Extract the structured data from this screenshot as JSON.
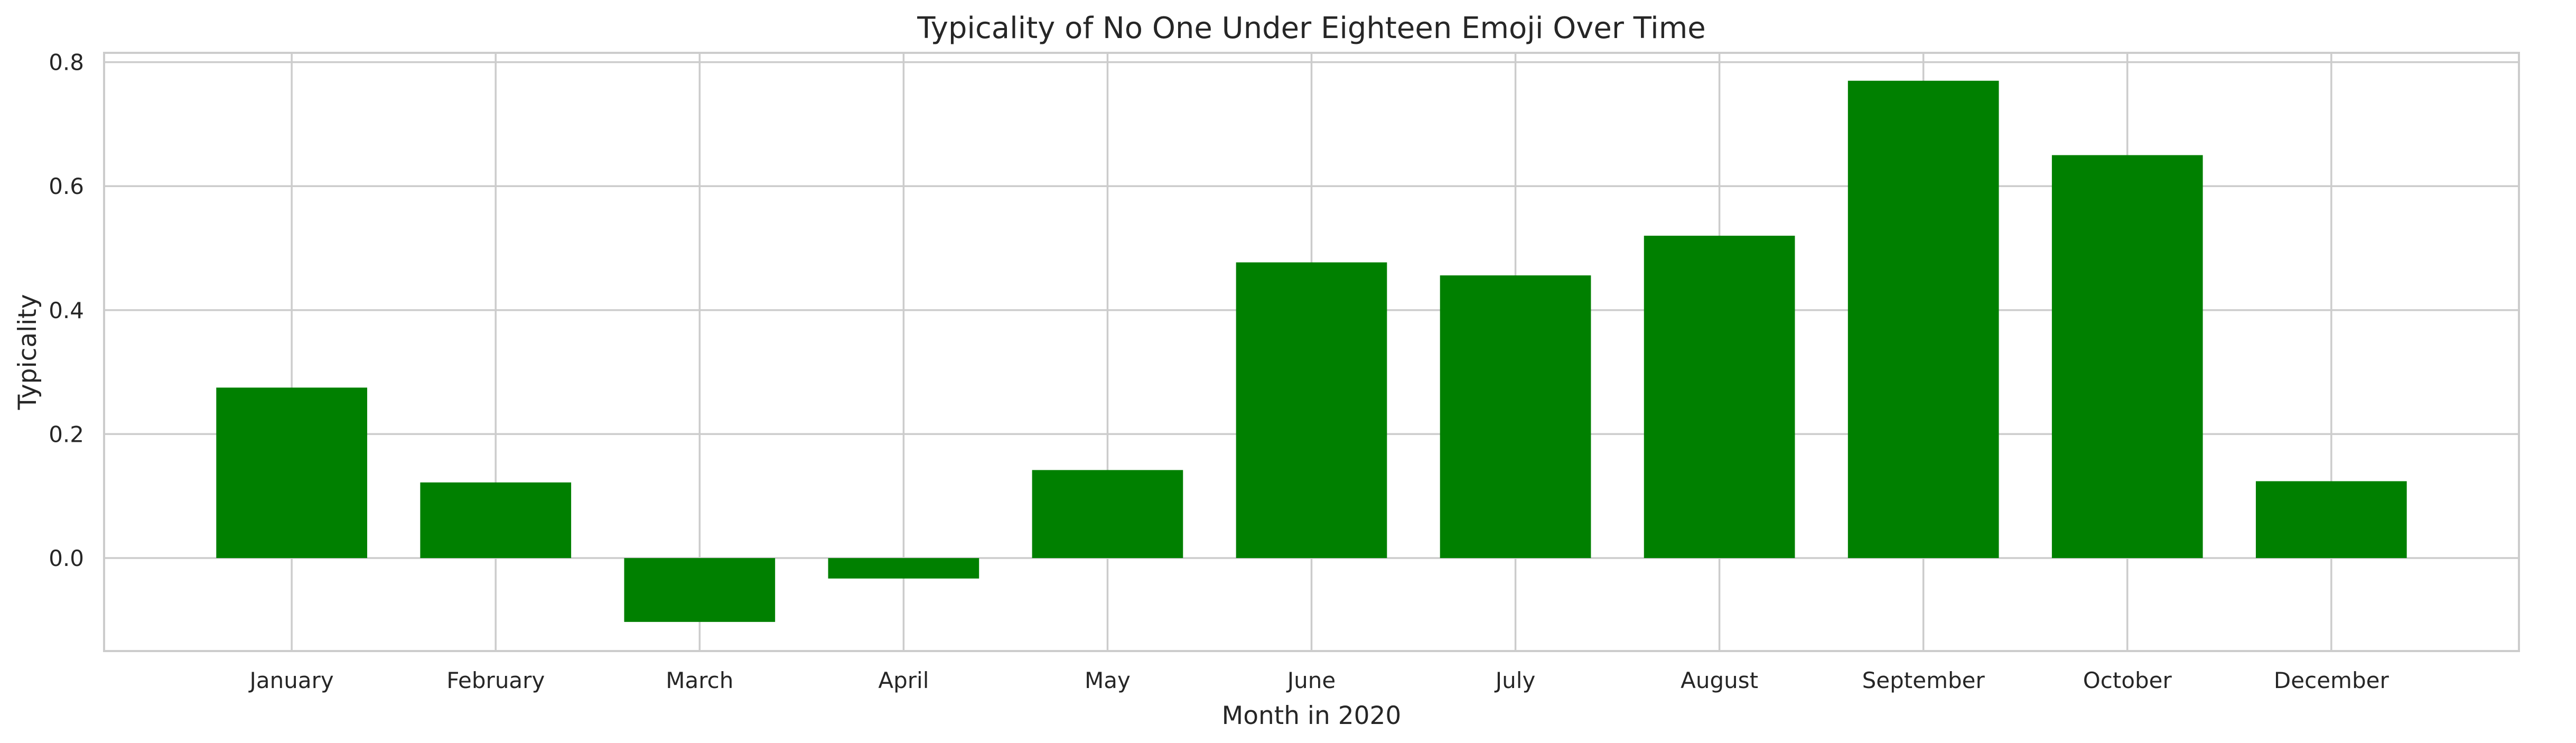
{
  "chart_data": {
    "type": "bar",
    "title": "Typicality of No One Under Eighteen Emoji Over Time",
    "xlabel": "Month in 2020",
    "ylabel": "Typicality",
    "categories": [
      "January",
      "February",
      "March",
      "April",
      "May",
      "June",
      "July",
      "August",
      "September",
      "October",
      "December"
    ],
    "values": [
      0.275,
      0.122,
      -0.103,
      -0.033,
      0.142,
      0.477,
      0.456,
      0.52,
      0.77,
      0.65,
      0.124
    ],
    "ylim": [
      -0.15,
      0.815
    ],
    "yticks": [
      0.0,
      0.2,
      0.4,
      0.6,
      0.8
    ],
    "ytick_labels": [
      "0.0",
      "0.2",
      "0.4",
      "0.6",
      "0.8"
    ],
    "grid": true,
    "colors": {
      "bar": "#008000",
      "grid": "#cccccc",
      "spine": "#cccccc",
      "text": "#262626",
      "background": "#ffffff"
    }
  }
}
